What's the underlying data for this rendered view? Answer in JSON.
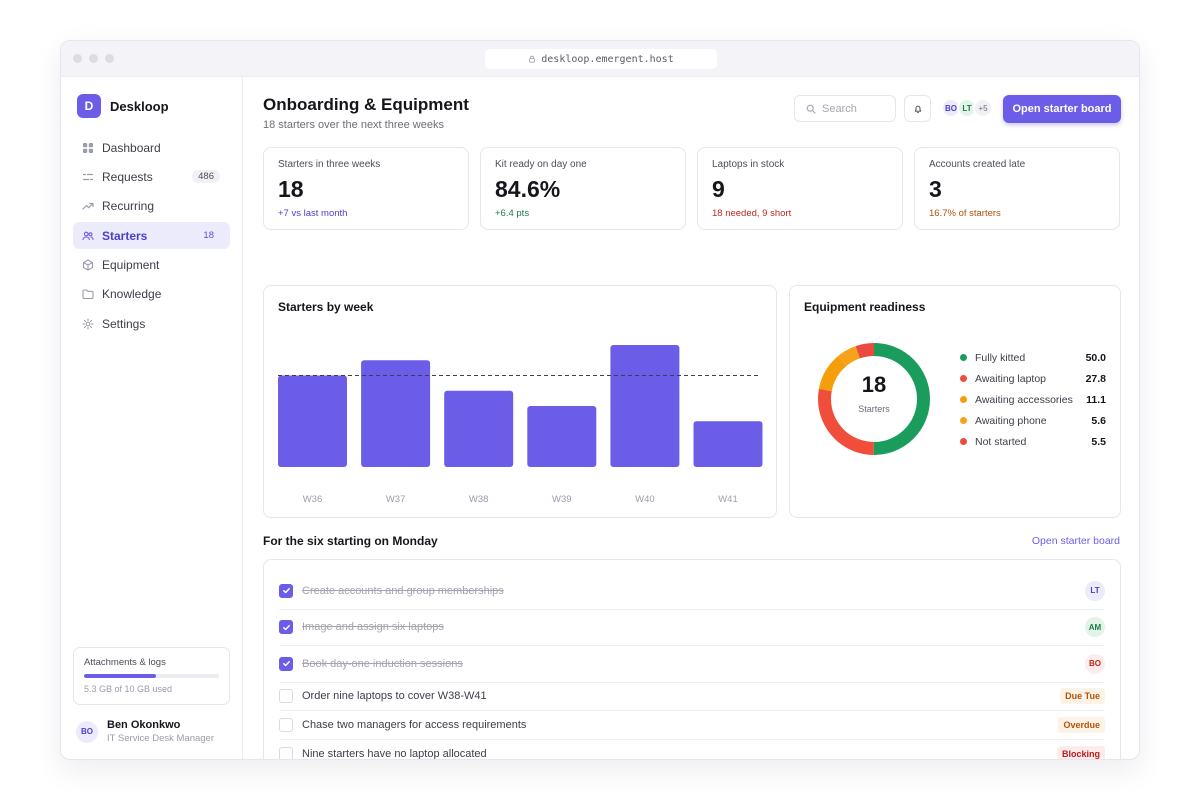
{
  "browser": {
    "url": "deskloop.emergent.host"
  },
  "brand": {
    "initial": "D",
    "name": "Deskloop"
  },
  "nav": [
    {
      "label": "Dashboard",
      "icon": "dashboard-icon",
      "count": ""
    },
    {
      "label": "Requests",
      "icon": "requests-icon",
      "count": "486"
    },
    {
      "label": "Recurring",
      "icon": "trend-icon",
      "count": ""
    },
    {
      "label": "Starters",
      "icon": "users-icon",
      "count": "18",
      "active": true
    },
    {
      "label": "Equipment",
      "icon": "box-icon",
      "count": ""
    },
    {
      "label": "Knowledge",
      "icon": "folder-icon",
      "count": ""
    },
    {
      "label": "Settings",
      "icon": "gear-icon",
      "count": ""
    }
  ],
  "storage": {
    "title": "Attachments & logs",
    "used_fraction": 0.53,
    "label": "5.3 GB of 10 GB used"
  },
  "user": {
    "initials": "BO",
    "name": "Ben Okonkwo",
    "role": "IT Service Desk Manager"
  },
  "header": {
    "title": "Onboarding & Equipment",
    "subtitle": "18 starters over the next three weeks",
    "search_placeholder": "Search",
    "avatars": [
      "BO",
      "LT",
      "+5"
    ],
    "cta": "Open starter board"
  },
  "kpis": [
    {
      "label": "Starters in three weeks",
      "value": "18",
      "delta": "+7 vs last month",
      "tone": "#4c3fc8"
    },
    {
      "label": "Kit ready on day one",
      "value": "84.6%",
      "delta": "+6.4 pts",
      "tone": "#1a7f45"
    },
    {
      "label": "Laptops in stock",
      "value": "9",
      "delta": "18 needed, 9 short",
      "tone": "#c0271f"
    },
    {
      "label": "Accounts created late",
      "value": "3",
      "delta": "16.7% of starters",
      "tone": "#b45309"
    }
  ],
  "bar_card": {
    "title": "Starters by week"
  },
  "donut_card": {
    "title": "Equipment readiness",
    "center_value": "18",
    "center_label": "Starters"
  },
  "chart_data": [
    {
      "type": "bar",
      "title": "Starters by week",
      "categories": [
        "W36",
        "W37",
        "W38",
        "W39",
        "W40",
        "W41"
      ],
      "values": [
        3.0,
        3.5,
        2.5,
        2.0,
        4.0,
        1.5
      ],
      "reference_line": 3.0,
      "ylim": [
        0,
        4.0
      ],
      "grid": false,
      "color": "#6b5de8"
    },
    {
      "type": "pie",
      "title": "Equipment readiness",
      "donut": true,
      "slices": [
        {
          "name": "Fully kitted",
          "value": 50.0,
          "color": "#1a9d5c"
        },
        {
          "name": "Awaiting laptop",
          "value": 27.8,
          "color": "#f04d3b"
        },
        {
          "name": "Awaiting accessories",
          "value": 11.1,
          "color": "#f59e0b"
        },
        {
          "name": "Awaiting phone",
          "value": 5.6,
          "color": "#f7a21b"
        },
        {
          "name": "Not started",
          "value": 5.5,
          "color": "#ea4b3f"
        }
      ],
      "legend": "right"
    }
  ],
  "tasks_section": {
    "title": "For the six starting on Monday",
    "link": "Open starter board"
  },
  "tasks": [
    {
      "text": "Create accounts and group memberships",
      "done": true,
      "assignee": "LT",
      "av_bg": "#ecebfb",
      "av_fg": "#4c3fc8"
    },
    {
      "text": "Image and assign six laptops",
      "done": true,
      "assignee": "AM",
      "av_bg": "#e3f3ea",
      "av_fg": "#1a7f45"
    },
    {
      "text": "Book day-one induction sessions",
      "done": true,
      "assignee": "BO",
      "av_bg": "#fdecec",
      "av_fg": "#c0271f"
    },
    {
      "text": "Order nine laptops to cover W38-W41",
      "done": false,
      "tag": "Due Tue",
      "tag_tone": "warn"
    },
    {
      "text": "Chase two managers for access requirements",
      "done": false,
      "tag": "Overdue",
      "tag_tone": "warn"
    },
    {
      "text": "Nine starters have no laptop allocated",
      "done": false,
      "tag": "Blocking",
      "tag_tone": "red"
    }
  ]
}
